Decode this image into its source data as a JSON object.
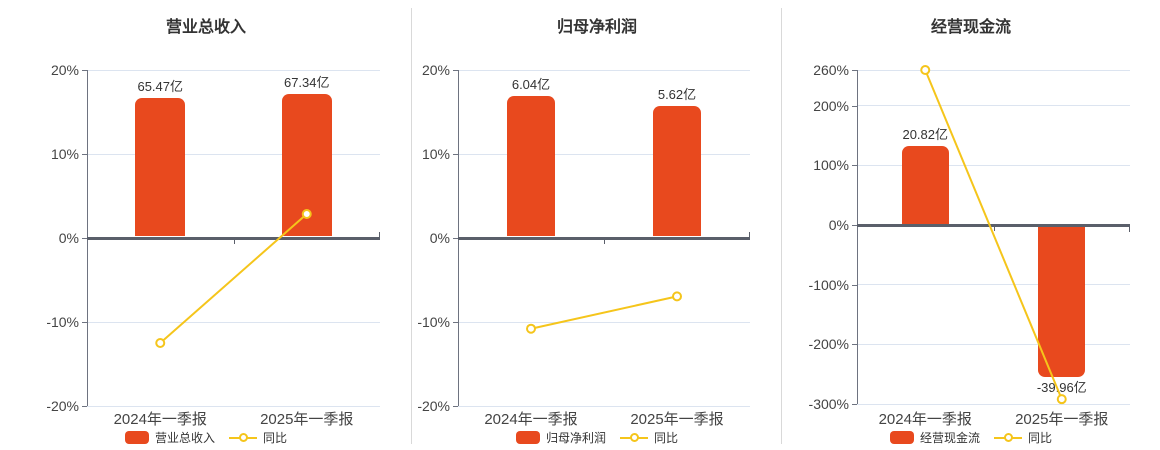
{
  "page": {
    "background": "#ffffff"
  },
  "colors": {
    "bar": "#e8491e",
    "line": "#f5c51b",
    "marker_fill": "#ffffff",
    "grid": "#dce4f0",
    "zero_axis": "#5a5f6a",
    "axis_spine": "#6e7380",
    "divider": "#d9d9d9",
    "title_text": "#333333",
    "tick_text": "#444444",
    "label_text": "#333333"
  },
  "chart_data": [
    {
      "type": "bar",
      "title": "营业总收入",
      "categories": [
        "2024年一季报",
        "2025年一季报"
      ],
      "bar_series": {
        "name": "营业总收入",
        "unit": "亿",
        "values": [
          65.47,
          67.34
        ],
        "labels": [
          "65.47亿",
          "67.34亿"
        ]
      },
      "line_series": {
        "name": "同比",
        "values_pct": [
          -12.5,
          2.86
        ]
      },
      "y_axis": {
        "min": -20,
        "max": 20,
        "ticks": [
          {
            "value": 20,
            "label": "20%"
          },
          {
            "value": 10,
            "label": "10%"
          },
          {
            "value": 0,
            "label": "0%"
          },
          {
            "value": -10,
            "label": "-10%"
          },
          {
            "value": -20,
            "label": "-20%"
          }
        ]
      },
      "bar_display_pct": [
        16.7,
        17.18
      ],
      "bar_label_pos": [
        "above",
        "above"
      ],
      "legend_position": "bottom-center",
      "grid": true
    },
    {
      "type": "bar",
      "title": "归母净利润",
      "categories": [
        "2024年一季报",
        "2025年一季报"
      ],
      "bar_series": {
        "name": "归母净利润",
        "unit": "亿",
        "values": [
          6.04,
          5.62
        ],
        "labels": [
          "6.04亿",
          "5.62亿"
        ]
      },
      "line_series": {
        "name": "同比",
        "values_pct": [
          -10.8,
          -6.95
        ]
      },
      "y_axis": {
        "min": -20,
        "max": 20,
        "ticks": [
          {
            "value": 20,
            "label": "20%"
          },
          {
            "value": 10,
            "label": "10%"
          },
          {
            "value": 0,
            "label": "0%"
          },
          {
            "value": -10,
            "label": "-10%"
          },
          {
            "value": -20,
            "label": "-20%"
          }
        ]
      },
      "bar_display_pct": [
        16.9,
        15.72
      ],
      "bar_label_pos": [
        "above",
        "above"
      ],
      "legend_position": "bottom-center",
      "grid": true
    },
    {
      "type": "bar",
      "title": "经营现金流",
      "categories": [
        "2024年一季报",
        "2025年一季报"
      ],
      "bar_series": {
        "name": "经营现金流",
        "unit": "亿",
        "values": [
          20.82,
          -39.96
        ],
        "labels": [
          "20.82亿",
          "-39.96亿"
        ]
      },
      "line_series": {
        "name": "同比",
        "values_pct": [
          260.0,
          -291.9
        ]
      },
      "y_axis": {
        "min": -300,
        "max": 260,
        "ticks": [
          {
            "value": 260,
            "label": "260%"
          },
          {
            "value": 200,
            "label": "200%"
          },
          {
            "value": 100,
            "label": "100%"
          },
          {
            "value": 0,
            "label": "0%"
          },
          {
            "value": -100,
            "label": "-100%"
          },
          {
            "value": -200,
            "label": "-200%"
          },
          {
            "value": -300,
            "label": "-300%"
          }
        ]
      },
      "bar_display_pct": [
        132.5,
        -254.3
      ],
      "bar_label_pos": [
        "above",
        "below"
      ],
      "legend_position": "bottom-center",
      "grid": true
    }
  ]
}
